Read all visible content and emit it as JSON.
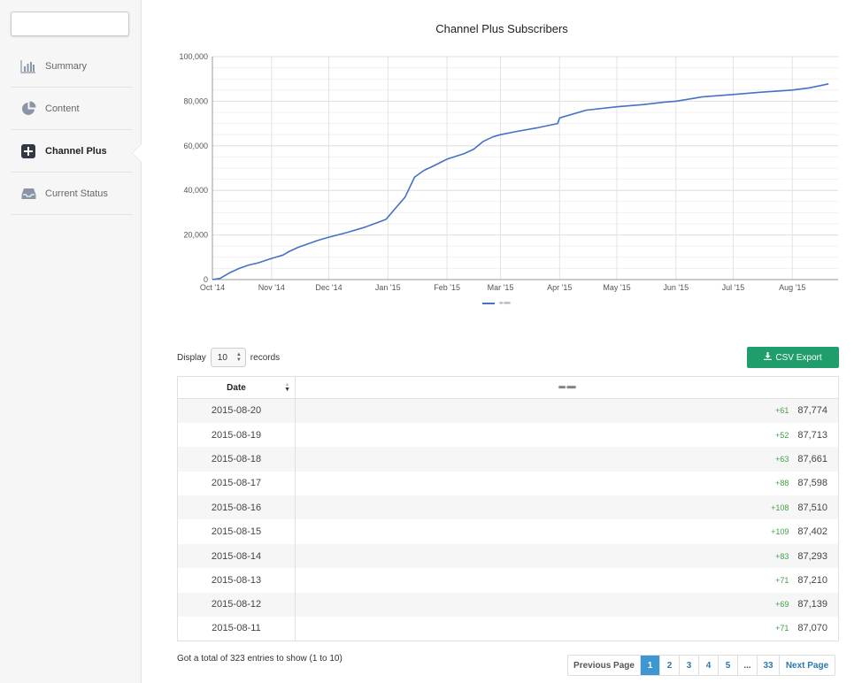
{
  "sidebar": {
    "items": [
      {
        "label": "Summary",
        "icon": "bar-chart-icon",
        "active": false
      },
      {
        "label": "Content",
        "icon": "pie-chart-icon",
        "active": false
      },
      {
        "label": "Channel Plus",
        "icon": "plus-square-icon",
        "active": true
      },
      {
        "label": "Current Status",
        "icon": "inbox-icon",
        "active": false
      }
    ]
  },
  "chart_data": {
    "type": "line",
    "title": "Channel Plus Subscribers",
    "xlabel": "",
    "ylabel": "",
    "ylim": [
      0,
      100000
    ],
    "y_ticks": [
      "0",
      "20,000",
      "40,000",
      "60,000",
      "80,000",
      "100,000"
    ],
    "x_ticks": [
      "Oct '14",
      "Nov '14",
      "Dec '14",
      "Jan '15",
      "Feb '15",
      "Mar '15",
      "Apr '15",
      "May '15",
      "Jun '15",
      "Jul '15",
      "Aug '15"
    ],
    "grid": true,
    "legend_placement": "bottom",
    "series": [
      {
        "color": "#4472c4",
        "x": [
          "2014-10-01",
          "2014-10-05",
          "2014-10-10",
          "2014-10-15",
          "2014-10-20",
          "2014-10-25",
          "2014-11-01",
          "2014-11-07",
          "2014-11-10",
          "2014-11-15",
          "2014-11-20",
          "2014-11-25",
          "2014-12-01",
          "2014-12-10",
          "2014-12-20",
          "2014-12-31",
          "2015-01-05",
          "2015-01-10",
          "2015-01-15",
          "2015-01-20",
          "2015-01-25",
          "2015-02-01",
          "2015-02-10",
          "2015-02-15",
          "2015-02-20",
          "2015-02-25",
          "2015-03-01",
          "2015-03-10",
          "2015-03-20",
          "2015-03-31",
          "2015-04-01",
          "2015-04-15",
          "2015-05-01",
          "2015-05-15",
          "2015-05-25",
          "2015-06-01",
          "2015-06-15",
          "2015-07-01",
          "2015-07-15",
          "2015-08-01",
          "2015-08-10",
          "2015-08-20"
        ],
        "values": [
          0,
          500,
          3000,
          5000,
          6500,
          7500,
          9500,
          11000,
          12500,
          14500,
          16000,
          17500,
          19000,
          21000,
          23500,
          27000,
          32000,
          37000,
          46000,
          49000,
          51000,
          54000,
          56500,
          58500,
          62000,
          64000,
          65000,
          66500,
          68000,
          70000,
          72500,
          76000,
          77500,
          78500,
          79500,
          80000,
          82000,
          83000,
          84000,
          85000,
          86000,
          87774
        ]
      }
    ]
  },
  "legend": {
    "label": "•• ••••"
  },
  "controls": {
    "display_label": "Display",
    "records_value": "10",
    "records_label": "records",
    "csv_button": "CSV Export"
  },
  "table": {
    "headers": {
      "date": "Date",
      "value": "••• ••••"
    },
    "rows": [
      {
        "date": "2015-08-20",
        "delta": "+61",
        "value": "87,774"
      },
      {
        "date": "2015-08-19",
        "delta": "+52",
        "value": "87,713"
      },
      {
        "date": "2015-08-18",
        "delta": "+63",
        "value": "87,661"
      },
      {
        "date": "2015-08-17",
        "delta": "+88",
        "value": "87,598"
      },
      {
        "date": "2015-08-16",
        "delta": "+108",
        "value": "87,510"
      },
      {
        "date": "2015-08-15",
        "delta": "+109",
        "value": "87,402"
      },
      {
        "date": "2015-08-14",
        "delta": "+83",
        "value": "87,293"
      },
      {
        "date": "2015-08-13",
        "delta": "+71",
        "value": "87,210"
      },
      {
        "date": "2015-08-12",
        "delta": "+69",
        "value": "87,139"
      },
      {
        "date": "2015-08-11",
        "delta": "+71",
        "value": "87,070"
      }
    ]
  },
  "footer": {
    "total_text": "Got a total of 323 entries to show (1 to 10)",
    "pager": {
      "prev": "Previous Page",
      "pages": [
        "1",
        "2",
        "3",
        "4",
        "5",
        "...",
        "33"
      ],
      "active": "1",
      "next": "Next Page"
    }
  }
}
